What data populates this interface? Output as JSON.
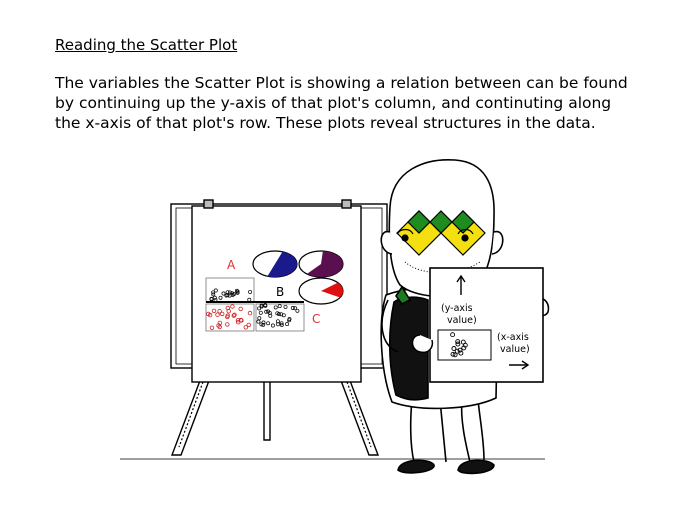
{
  "heading": "Reading the Scatter Plot",
  "paragraph": [
    "The variables the Scatter Plot is showing a relation between can be found",
    "by continuing up the y-axis of that plot's column, and continuting along",
    "the x-axis of that plot's row. These plots reveal structures in the data."
  ],
  "easel": {
    "labels": {
      "a": "A",
      "b": "B",
      "c": "C"
    },
    "label_color": "#e03030",
    "pie_colors": [
      "#1a1a8c",
      "#5a0f4f",
      "#e01010"
    ]
  },
  "sign": {
    "y_axis_line1": "(y-axis",
    "y_axis_line2": "value)",
    "x_axis_line1": "(x-axis",
    "x_axis_line2": "value)"
  },
  "glasses": {
    "colors": [
      "#f4e010",
      "#1e8c1e"
    ]
  }
}
